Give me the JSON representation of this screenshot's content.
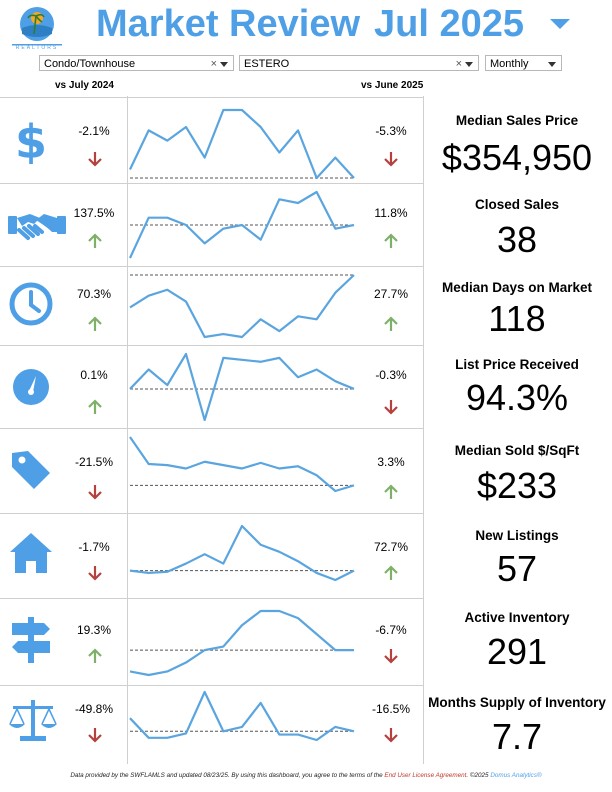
{
  "header": {
    "title_main": "Market Review",
    "title_month": "Jul 2025",
    "logo_text": "REALTORS"
  },
  "filters": {
    "property_type": "Condo/Townhouse",
    "area": "ESTERO",
    "period": "Monthly",
    "clear_symbol": "×"
  },
  "columns": {
    "left_compare": "vs July 2024",
    "right_compare": "vs June 2025"
  },
  "colors": {
    "accent": "#4e9fe6",
    "up": "#7fb069",
    "down": "#b5413f",
    "line": "#5aa5df"
  },
  "metrics": [
    {
      "name": "Median Sales Price",
      "value": "$354,950",
      "icon": "dollar-icon",
      "yoy": "-2.1%",
      "yoy_dir": "down",
      "mom": "-5.3%",
      "mom_dir": "down",
      "trend": [
        0.5,
        2.8,
        2.2,
        3.0,
        1.2,
        4.0,
        4.0,
        3.0,
        1.5,
        2.8,
        0.0,
        1.2,
        0.0
      ],
      "ref": 0.0
    },
    {
      "name": "Closed Sales",
      "value": "38",
      "icon": "handshake-icon",
      "yoy": "137.5%",
      "yoy_dir": "up",
      "mom": "11.8%",
      "mom_dir": "up",
      "trend": [
        0.5,
        1.6,
        1.6,
        1.4,
        0.9,
        1.3,
        1.4,
        1.0,
        2.1,
        2.0,
        2.3,
        1.3,
        1.4
      ],
      "ref": 1.4
    },
    {
      "name": "Median Days on Market",
      "value": "118",
      "icon": "clock-icon",
      "yoy": "70.3%",
      "yoy_dir": "up",
      "mom": "27.7%",
      "mom_dir": "up",
      "trend": [
        1.7,
        2.1,
        2.3,
        1.9,
        0.7,
        0.8,
        0.7,
        1.3,
        0.9,
        1.4,
        1.3,
        2.2,
        2.8
      ],
      "ref": 2.8
    },
    {
      "name": "List Price Received",
      "value": "94.3%",
      "icon": "gauge-icon",
      "yoy": "0.1%",
      "yoy_dir": "up",
      "mom": "-0.3%",
      "mom_dir": "down",
      "trend": [
        1.0,
        1.5,
        1.1,
        1.9,
        0.2,
        1.8,
        1.75,
        1.7,
        1.8,
        1.3,
        1.5,
        1.2,
        1.0
      ],
      "ref": 1.0
    },
    {
      "name": "Median Sold $/SqFt",
      "value": "$233",
      "icon": "price-tag-icon",
      "yoy": "-21.5%",
      "yoy_dir": "down",
      "mom": "3.3%",
      "mom_dir": "up",
      "trend": [
        3.0,
        1.8,
        1.75,
        1.6,
        1.9,
        1.75,
        1.6,
        1.85,
        1.6,
        1.7,
        1.3,
        0.6,
        0.85
      ],
      "ref": 0.85
    },
    {
      "name": "New Listings",
      "value": "57",
      "icon": "house-icon",
      "yoy": "-1.7%",
      "yoy_dir": "down",
      "mom": "72.7%",
      "mom_dir": "up",
      "trend": [
        0.6,
        0.5,
        0.55,
        0.9,
        1.3,
        0.9,
        2.5,
        1.7,
        1.4,
        1.0,
        0.5,
        0.2,
        0.6
      ],
      "ref": 0.6
    },
    {
      "name": "Active Inventory",
      "value": "291",
      "icon": "signpost-icon",
      "yoy": "19.3%",
      "yoy_dir": "up",
      "mom": "-6.7%",
      "mom_dir": "down",
      "trend": [
        0.4,
        0.2,
        0.4,
        0.9,
        1.6,
        1.8,
        3.0,
        3.8,
        3.8,
        3.4,
        2.5,
        1.6,
        1.6
      ],
      "ref": 1.6
    },
    {
      "name": "Months Supply of Inventory",
      "value": "7.7",
      "icon": "scales-icon",
      "yoy": "-49.8%",
      "yoy_dir": "down",
      "mom": "-16.5%",
      "mom_dir": "down",
      "trend": [
        1.2,
        0.3,
        0.3,
        0.5,
        2.4,
        0.6,
        0.8,
        1.9,
        0.45,
        0.45,
        0.2,
        0.8,
        0.6
      ],
      "ref": 0.6
    }
  ],
  "footer": {
    "part1": "Data provided by the SWFLAMLS and updated 08/23/25.  By using this dashboard, you agree to the terms of the ",
    "link": "End User License Agreement",
    "part2": ".  ©2025 ",
    "brand": "Domus Analytics®"
  }
}
